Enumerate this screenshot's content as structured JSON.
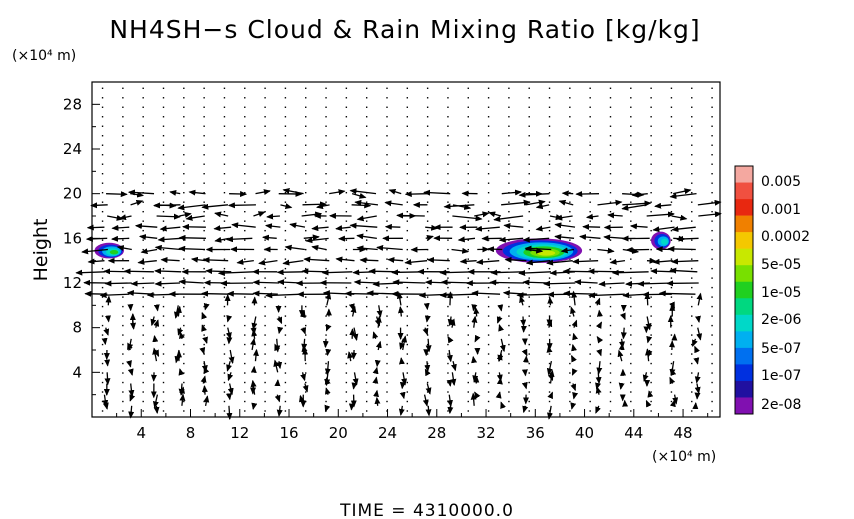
{
  "chart_data": {
    "type": "contour",
    "title": "NH4SH−s Cloud & Rain Mixing Ratio [kg/kg]",
    "x_unit": "(×10⁴ m)",
    "y_unit": "(×10⁴ m)",
    "ylabel": "Height",
    "xlabel": "",
    "xlim": [
      0,
      51
    ],
    "ylim": [
      0,
      30
    ],
    "x_ticks": [
      "4",
      "8",
      "12",
      "16",
      "20",
      "24",
      "28",
      "32",
      "36",
      "40",
      "44",
      "48"
    ],
    "y_ticks": [
      "4",
      "8",
      "12",
      "16",
      "20",
      "24",
      "28"
    ],
    "x_tick_values": [
      4,
      8,
      12,
      16,
      20,
      24,
      28,
      32,
      36,
      40,
      44,
      48
    ],
    "y_tick_values": [
      4,
      8,
      12,
      16,
      20,
      24,
      28
    ],
    "colorbar": {
      "labels": [
        "0.005",
        "0.001",
        "0.0002",
        "5e-05",
        "1e-05",
        "2e-06",
        "5e-07",
        "1e-07",
        "2e-08"
      ],
      "colors": [
        "#f4a8a0",
        "#f05040",
        "#e82810",
        "#f08000",
        "#f4c800",
        "#c8e800",
        "#78e000",
        "#20d020",
        "#00d880",
        "#00d8c8",
        "#00b0f0",
        "#0070f0",
        "#0030e0",
        "#2010a0",
        "#8010b0"
      ]
    },
    "cloud_regions": [
      {
        "x": [
          0.2,
          2.6
        ],
        "y": [
          14.2,
          15.6
        ],
        "peak": "1e-05"
      },
      {
        "x": [
          32.8,
          39.8
        ],
        "y": [
          13.8,
          16.0
        ],
        "peak": "5e-05"
      },
      {
        "x": [
          45.4,
          47.0
        ],
        "y": [
          15.0,
          16.6
        ],
        "peak": "2e-06"
      }
    ],
    "wind_field": {
      "bands": [
        {
          "y": [
            10.5,
            13.5
          ],
          "direction": "westward",
          "strength": "strong"
        },
        {
          "y": [
            13.5,
            17.5
          ],
          "direction": "westward",
          "strength": "moderate"
        },
        {
          "y": [
            17.5,
            20.5
          ],
          "direction": "mixed",
          "strength": "moderate"
        },
        {
          "y": [
            0,
            10.5
          ],
          "direction": "vertical",
          "strength": "weak"
        },
        {
          "y": [
            20.5,
            30
          ],
          "direction": "calm",
          "strength": "none"
        }
      ]
    }
  },
  "time_label": "TIME  =  4310000.0"
}
